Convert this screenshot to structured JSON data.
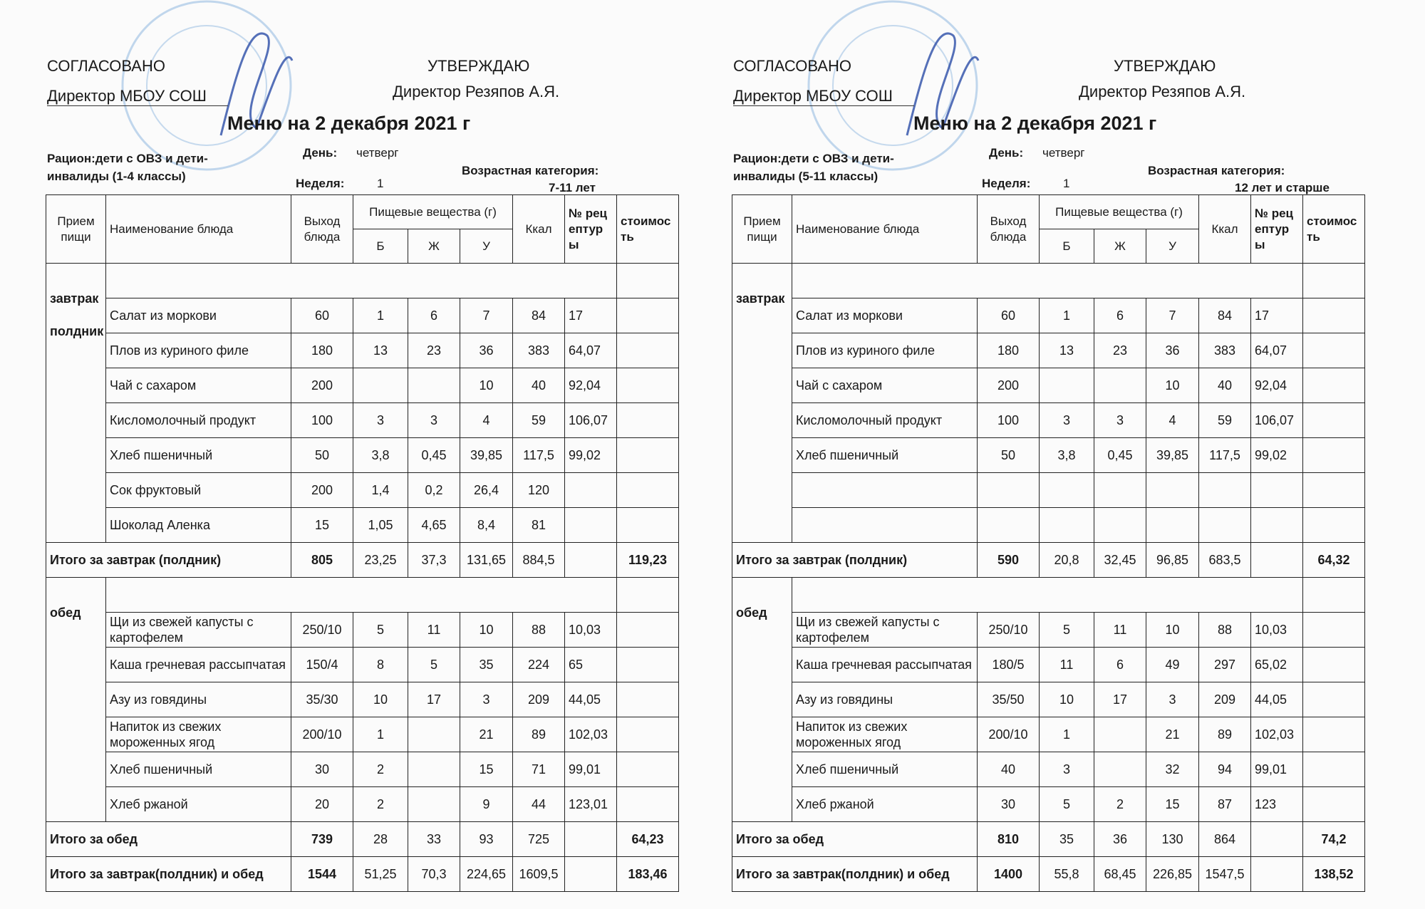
{
  "menus": [
    {
      "agreed": "СОГЛАСОВАНО",
      "director": "Директор МБОУ СОШ",
      "approve": "УТВЕРЖДАЮ",
      "approver": "Директор Резяпов А.Я.",
      "title": "Меню на 2 декабря  2021 г",
      "ration": "Рацион:дети с ОВЗ и дети-инвалиды (1-4 классы)",
      "day_label": "День:",
      "day": "четверг",
      "week_label": "Неделя:",
      "week": "1",
      "age_label": "Возрастная категория:",
      "age": "7-11 лет",
      "table": {
        "header": {
          "meal": "Прием пищи",
          "dish": "Наименование блюда",
          "yield": "Выход блюда",
          "nutrients": "Пищевые вещества (г)",
          "protein": "Б",
          "fat": "Ж",
          "carbs": "У",
          "kcal": "Ккал",
          "recipe": "№ рецептуры",
          "cost": "стоимость"
        },
        "sections": [
          {
            "meal": [
              "завтрак",
              "полдник"
            ],
            "rows": [
              [
                "Салат из моркови",
                "60",
                "1",
                "6",
                "7",
                "84",
                "17",
                null
              ],
              [
                "Плов из куриного филе",
                "180",
                "13",
                "23",
                "36",
                "383",
                "64,07",
                null
              ],
              [
                "Чай с сахаром",
                "200",
                null,
                null,
                "10",
                "40",
                "92,04",
                null
              ],
              [
                "Кисломолочный продукт",
                "100",
                "3",
                "3",
                "4",
                "59",
                "106,07",
                null
              ],
              [
                "Хлеб пшеничный",
                "50",
                "3,8",
                "0,45",
                "39,85",
                "117,5",
                "99,02",
                null
              ],
              [
                "Сок фруктовый",
                "200",
                "1,4",
                "0,2",
                "26,4",
                "120",
                null,
                null
              ],
              [
                "Шоколад Аленка",
                "15",
                "1,05",
                "4,65",
                "8,4",
                "81",
                null,
                null
              ]
            ],
            "total": {
              "label": "Итого за завтрак (полдник)",
              "values": [
                "805",
                "23,25",
                "37,3",
                "131,65",
                "884,5",
                null,
                "119,23"
              ]
            }
          },
          {
            "meal": [
              "обед"
            ],
            "rows": [
              [
                "Щи из свежей капусты с картофелем",
                "250/10",
                "5",
                "11",
                "10",
                "88",
                "10,03",
                null
              ],
              [
                "Каша гречневая рассыпчатая",
                "150/4",
                "8",
                "5",
                "35",
                "224",
                "65",
                null
              ],
              [
                "Азу из говядины",
                "35/30",
                "10",
                "17",
                "3",
                "209",
                "44,05",
                null
              ],
              [
                "Напиток из свежих мороженных ягод",
                "200/10",
                "1",
                null,
                "21",
                "89",
                "102,03",
                null
              ],
              [
                "Хлеб пшеничный",
                "30",
                "2",
                null,
                "15",
                "71",
                "99,01",
                null
              ],
              [
                "Хлеб ржаной",
                "20",
                "2",
                null,
                "9",
                "44",
                "123,01",
                null
              ]
            ],
            "total": {
              "label": "Итого за обед",
              "values": [
                "739",
                "28",
                "33",
                "93",
                "725",
                null,
                "64,23"
              ]
            }
          }
        ],
        "grand_total": {
          "label": "Итого за завтрак(полдник) и обед",
          "values": [
            "1544",
            "51,25",
            "70,3",
            "224,65",
            "1609,5",
            null,
            "183,46"
          ]
        }
      }
    },
    {
      "agreed": "СОГЛАСОВАНО",
      "director": "Директор МБОУ СОШ",
      "approve": "УТВЕРЖДАЮ",
      "approver": "Директор Резяпов А.Я.",
      "title": "Меню на 2 декабря  2021 г",
      "ration": "Рацион:дети с ОВЗ и дети-инвалиды (5-11 классы)",
      "day_label": "День:",
      "day": "четверг",
      "week_label": "Неделя:",
      "week": "1",
      "age_label": "Возрастная категория:",
      "age": "12 лет и старше",
      "table": {
        "header": {
          "meal": "Прием пищи",
          "dish": "Наименование блюда",
          "yield": "Выход блюда",
          "nutrients": "Пищевые вещества (г)",
          "protein": "Б",
          "fat": "Ж",
          "carbs": "У",
          "kcal": "Ккал",
          "recipe": "№ рецептуры",
          "cost": "стоимость"
        },
        "sections": [
          {
            "meal": [
              "завтрак"
            ],
            "rows": [
              [
                "Салат из моркови",
                "60",
                "1",
                "6",
                "7",
                "84",
                "17",
                null
              ],
              [
                "Плов из куриного филе",
                "180",
                "13",
                "23",
                "36",
                "383",
                "64,07",
                null
              ],
              [
                "Чай с сахаром",
                "200",
                null,
                null,
                "10",
                "40",
                "92,04",
                null
              ],
              [
                "Кисломолочный продукт",
                "100",
                "3",
                "3",
                "4",
                "59",
                "106,07",
                null
              ],
              [
                "Хлеб пшеничный",
                "50",
                "3,8",
                "0,45",
                "39,85",
                "117,5",
                "99,02",
                null
              ]
            ],
            "total": {
              "label": "Итого за завтрак (полдник)",
              "values": [
                "590",
                "20,8",
                "32,45",
                "96,85",
                "683,5",
                null,
                "64,32"
              ]
            }
          },
          {
            "meal": [
              "обед"
            ],
            "rows": [
              [
                "Щи из свежей капусты с картофелем",
                "250/10",
                "5",
                "11",
                "10",
                "88",
                "10,03",
                null
              ],
              [
                "Каша гречневая рассыпчатая",
                "180/5",
                "11",
                "6",
                "49",
                "297",
                "65,02",
                null
              ],
              [
                "Азу из говядины",
                "35/50",
                "10",
                "17",
                "3",
                "209",
                "44,05",
                null
              ],
              [
                "Напиток из свежих мороженных ягод",
                "200/10",
                "1",
                null,
                "21",
                "89",
                "102,03",
                null
              ],
              [
                "Хлеб пшеничный",
                "40",
                "3",
                null,
                "32",
                "94",
                "99,01",
                null
              ],
              [
                "Хлеб ржаной",
                "30",
                "5",
                "2",
                "15",
                "87",
                "123",
                null
              ]
            ],
            "total": {
              "label": "Итого за обед",
              "values": [
                "810",
                "35",
                "36",
                "130",
                "864",
                null,
                "74,2"
              ]
            }
          }
        ],
        "grand_total": {
          "label": "Итого за завтрак(полдник) и обед",
          "values": [
            "1400",
            "55,8",
            "68,45",
            "226,85",
            "1547,5",
            null,
            "138,52"
          ]
        }
      }
    }
  ]
}
